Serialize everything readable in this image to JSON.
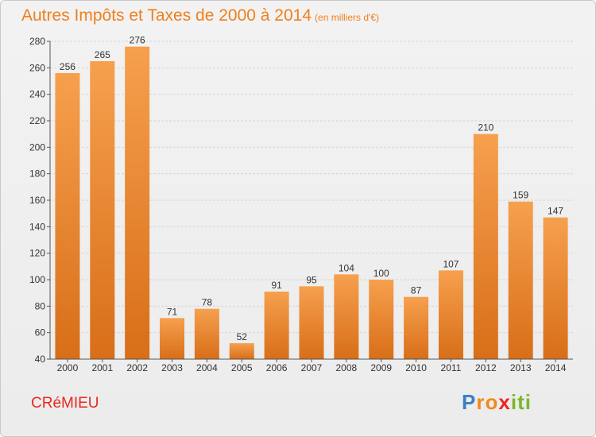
{
  "title": "Autres Impôts et Taxes de 2000 à 2014",
  "unit_note": "(en milliers d'€)",
  "commune": "CRéMIEU",
  "logo": {
    "text": "Proxiti",
    "letters": [
      "P",
      "r",
      "o",
      "x",
      "i",
      "t",
      "i"
    ],
    "colors": [
      "#3a7fc2",
      "#f08a1c",
      "#f08a1c",
      "#e8281f",
      "#7cb62c",
      "#7cb62c",
      "#7cb62c"
    ]
  },
  "colors": {
    "title": "#f07f1d",
    "bar_top": "#f6a04e",
    "bar_bottom": "#d86e18",
    "grid": "#d6d6d6",
    "commune": "#e8281f"
  },
  "chart_data": {
    "type": "bar",
    "title": "Autres Impôts et Taxes de 2000 à 2014",
    "categories": [
      "2000",
      "2001",
      "2002",
      "2003",
      "2004",
      "2005",
      "2006",
      "2007",
      "2008",
      "2009",
      "2010",
      "2011",
      "2012",
      "2013",
      "2014"
    ],
    "values": [
      256,
      265,
      276,
      71,
      78,
      52,
      91,
      95,
      104,
      100,
      87,
      107,
      210,
      159,
      147
    ],
    "ylim": [
      40,
      280
    ],
    "yticks": [
      40,
      60,
      80,
      100,
      120,
      140,
      160,
      180,
      200,
      220,
      240,
      260,
      280
    ],
    "grid": true,
    "data_labels": true
  }
}
